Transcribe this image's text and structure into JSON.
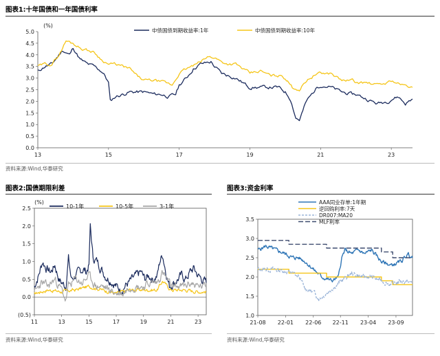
{
  "figure1": {
    "title": "图表1:十年国债和一年国债利率",
    "source": "资料来源:Wind,华泰研究"
  },
  "figure2": {
    "title": "图表2:国债期限利差",
    "source": "资料来源:Wind,华泰研究"
  },
  "figure3": {
    "title": "图表3:资金利率",
    "source": "资料来源:Wind,华泰研究"
  },
  "colors": {
    "navy": "#1a2a5c",
    "gold": "#f5c518",
    "gray": "#a6a6a6",
    "blue": "#2e75b6",
    "lightblue": "#9ab4d8",
    "dashnavy": "#3c4a6e"
  },
  "chart_data": [
    {
      "id": "fig1",
      "type": "line",
      "ylabel": "(%)",
      "ylim": [
        0,
        5
      ],
      "yticks": [
        "0.0",
        "0.5",
        "1.0",
        "1.5",
        "2.0",
        "2.5",
        "3.0",
        "3.5",
        "4.0",
        "4.5",
        "5.0"
      ],
      "xlim": [
        2013,
        2023.6
      ],
      "xticks": [
        {
          "x": 2013,
          "label": "13"
        },
        {
          "x": 2015,
          "label": "15"
        },
        {
          "x": 2017,
          "label": "17"
        },
        {
          "x": 2019,
          "label": "19"
        },
        {
          "x": 2021,
          "label": "21"
        },
        {
          "x": 2023,
          "label": "23"
        }
      ],
      "legend_position": "top",
      "series": [
        {
          "name": "中债国债到期收益率:1年",
          "color": "#1a2a5c",
          "seed": 11,
          "noise": 0.06,
          "x": [
            2013.0,
            2013.2,
            2013.4,
            2013.5,
            2013.7,
            2013.9,
            2014.0,
            2014.2,
            2014.4,
            2014.6,
            2014.8,
            2014.9,
            2015.0,
            2015.05,
            2015.2,
            2015.4,
            2015.6,
            2015.8,
            2016.0,
            2016.3,
            2016.5,
            2016.7,
            2016.9,
            2017.0,
            2017.2,
            2017.4,
            2017.6,
            2017.9,
            2018.0,
            2018.2,
            2018.4,
            2018.6,
            2018.8,
            2019.0,
            2019.3,
            2019.6,
            2019.8,
            2020.0,
            2020.15,
            2020.3,
            2020.4,
            2020.6,
            2020.9,
            2021.0,
            2021.3,
            2021.6,
            2021.9,
            2022.0,
            2022.3,
            2022.6,
            2022.9,
            2023.0,
            2023.2,
            2023.4,
            2023.6
          ],
          "y": [
            3.3,
            3.5,
            3.6,
            3.8,
            4.2,
            4.0,
            4.3,
            3.8,
            3.6,
            3.5,
            3.3,
            3.1,
            2.8,
            2.0,
            2.2,
            2.3,
            2.4,
            2.4,
            2.4,
            2.3,
            2.3,
            2.2,
            2.3,
            2.7,
            3.0,
            3.4,
            3.6,
            3.7,
            3.5,
            3.2,
            3.1,
            3.0,
            2.8,
            2.6,
            2.6,
            2.6,
            2.6,
            2.4,
            2.1,
            1.3,
            1.2,
            2.0,
            2.6,
            2.7,
            2.6,
            2.4,
            2.3,
            2.3,
            2.1,
            1.9,
            2.0,
            2.1,
            2.2,
            1.9,
            2.1
          ]
        },
        {
          "name": "中债国债到期收益率:10年",
          "color": "#f5c518",
          "seed": 29,
          "noise": 0.05,
          "x": [
            2013.0,
            2013.2,
            2013.4,
            2013.6,
            2013.8,
            2014.0,
            2014.2,
            2014.4,
            2014.6,
            2014.8,
            2015.0,
            2015.2,
            2015.4,
            2015.6,
            2015.8,
            2016.0,
            2016.3,
            2016.6,
            2016.8,
            2017.0,
            2017.2,
            2017.5,
            2017.8,
            2018.0,
            2018.2,
            2018.4,
            2018.6,
            2018.8,
            2019.0,
            2019.3,
            2019.6,
            2019.9,
            2020.0,
            2020.2,
            2020.4,
            2020.6,
            2020.9,
            2021.0,
            2021.3,
            2021.6,
            2021.9,
            2022.0,
            2022.3,
            2022.6,
            2022.9,
            2023.0,
            2023.3,
            2023.6
          ],
          "y": [
            3.5,
            3.6,
            3.6,
            4.0,
            4.6,
            4.5,
            4.3,
            4.2,
            4.1,
            3.8,
            3.6,
            3.6,
            3.5,
            3.4,
            3.1,
            2.9,
            2.9,
            2.8,
            2.7,
            3.2,
            3.4,
            3.6,
            3.9,
            3.9,
            3.7,
            3.6,
            3.6,
            3.4,
            3.2,
            3.3,
            3.1,
            3.1,
            3.0,
            2.6,
            2.5,
            2.9,
            3.2,
            3.2,
            3.2,
            2.9,
            2.9,
            2.8,
            2.8,
            2.7,
            2.8,
            2.9,
            2.7,
            2.6
          ]
        }
      ]
    },
    {
      "id": "fig2",
      "type": "line",
      "ylabel": "(%)",
      "ylim": [
        -0.5,
        2.5
      ],
      "yticks": [
        "(0.5)",
        "0.0",
        "0.5",
        "1.0",
        "1.5",
        "2.0",
        "2.5"
      ],
      "xlim": [
        2011,
        2023.6
      ],
      "xticks": [
        {
          "x": 2011,
          "label": "11"
        },
        {
          "x": 2013,
          "label": "13"
        },
        {
          "x": 2015,
          "label": "15"
        },
        {
          "x": 2017,
          "label": "17"
        },
        {
          "x": 2019,
          "label": "19"
        },
        {
          "x": 2021,
          "label": "21"
        },
        {
          "x": 2023,
          "label": "23"
        }
      ],
      "legend_position": "top",
      "series": [
        {
          "name": "10-1年",
          "color": "#1a2a5c",
          "seed": 7,
          "noise": 0.1,
          "x": [
            2011.0,
            2011.3,
            2011.6,
            2011.9,
            2012.2,
            2012.5,
            2012.8,
            2013.0,
            2013.3,
            2013.5,
            2013.7,
            2014.0,
            2014.3,
            2014.6,
            2014.8,
            2015.0,
            2015.1,
            2015.3,
            2015.6,
            2015.9,
            2016.2,
            2016.5,
            2016.8,
            2017.0,
            2017.3,
            2017.6,
            2017.9,
            2018.2,
            2018.5,
            2018.8,
            2019.1,
            2019.4,
            2019.7,
            2020.0,
            2020.2,
            2020.4,
            2020.6,
            2020.9,
            2021.2,
            2021.5,
            2021.8,
            2022.1,
            2022.4,
            2022.7,
            2023.0,
            2023.3,
            2023.6
          ],
          "y": [
            0.3,
            0.6,
            1.0,
            0.8,
            0.7,
            0.9,
            0.5,
            0.4,
            0.3,
            1.1,
            0.5,
            0.6,
            0.7,
            0.8,
            0.7,
            0.9,
            2.0,
            1.1,
            1.0,
            0.8,
            0.6,
            0.5,
            0.4,
            0.3,
            0.2,
            0.3,
            0.4,
            0.5,
            0.6,
            0.7,
            0.5,
            0.6,
            0.5,
            0.6,
            1.0,
            1.2,
            0.8,
            0.3,
            0.4,
            0.5,
            0.6,
            0.5,
            0.7,
            0.8,
            0.6,
            0.5,
            0.4
          ]
        },
        {
          "name": "10-5年",
          "color": "#f5c518",
          "seed": 17,
          "noise": 0.04,
          "x": [
            2011.0,
            2012.0,
            2013.0,
            2014.0,
            2015.0,
            2016.0,
            2017.0,
            2018.0,
            2019.0,
            2020.0,
            2020.4,
            2021.0,
            2022.0,
            2023.0,
            2023.6
          ],
          "y": [
            0.1,
            0.2,
            0.15,
            0.2,
            0.3,
            0.2,
            0.1,
            0.2,
            0.2,
            0.2,
            0.45,
            0.2,
            0.2,
            0.15,
            0.15
          ]
        },
        {
          "name": "3-1年",
          "color": "#a6a6a6",
          "seed": 23,
          "noise": 0.09,
          "x": [
            2011.0,
            2011.5,
            2012.0,
            2012.5,
            2013.0,
            2013.3,
            2013.5,
            2014.0,
            2014.5,
            2015.0,
            2015.5,
            2016.0,
            2016.5,
            2017.0,
            2017.5,
            2018.0,
            2018.5,
            2019.0,
            2019.5,
            2020.0,
            2020.4,
            2021.0,
            2021.5,
            2022.0,
            2022.5,
            2023.0,
            2023.6
          ],
          "y": [
            0.1,
            0.4,
            0.3,
            0.5,
            0.2,
            -0.1,
            0.3,
            0.5,
            0.4,
            0.6,
            0.3,
            0.3,
            0.2,
            0.1,
            0.1,
            0.3,
            0.3,
            0.3,
            0.4,
            0.4,
            0.7,
            0.3,
            0.3,
            0.3,
            0.4,
            0.3,
            0.3
          ]
        }
      ]
    },
    {
      "id": "fig3",
      "type": "line",
      "ylim": [
        1.0,
        3.5
      ],
      "yticks": [
        "1.0",
        "1.5",
        "2.0",
        "2.5",
        "3.0",
        "3.5"
      ],
      "xlim": [
        2021.58,
        2023.92
      ],
      "xticks": [
        {
          "x": 2021.58,
          "label": "21-08"
        },
        {
          "x": 2022.0,
          "label": "22-01"
        },
        {
          "x": 2022.42,
          "label": "22-06"
        },
        {
          "x": 2022.83,
          "label": "22-11"
        },
        {
          "x": 2023.25,
          "label": "23-04"
        },
        {
          "x": 2023.67,
          "label": "23-09"
        }
      ],
      "legend_position": "top",
      "series": [
        {
          "name": "AAA同业存单:1年期",
          "color": "#2e75b6",
          "dash": "",
          "seed": 5,
          "noise": 0.04,
          "x": [
            2021.58,
            2021.7,
            2021.85,
            2022.0,
            2022.1,
            2022.2,
            2022.3,
            2022.42,
            2022.55,
            2022.7,
            2022.8,
            2022.85,
            2022.9,
            2023.0,
            2023.1,
            2023.2,
            2023.3,
            2023.45,
            2023.6,
            2023.75,
            2023.85,
            2023.92
          ],
          "y": [
            2.7,
            2.8,
            2.7,
            2.6,
            2.5,
            2.5,
            2.4,
            2.2,
            2.0,
            1.9,
            2.0,
            2.5,
            2.7,
            2.6,
            2.7,
            2.6,
            2.7,
            2.4,
            2.3,
            2.4,
            2.6,
            2.5
          ]
        },
        {
          "name": "逆回购利率:7天",
          "color": "#f5c518",
          "dash": "",
          "seed": 0,
          "noise": 0,
          "x": [
            2021.58,
            2022.05,
            2022.05,
            2022.62,
            2022.62,
            2023.45,
            2023.45,
            2023.62,
            2023.62,
            2023.92
          ],
          "y": [
            2.2,
            2.2,
            2.1,
            2.1,
            2.0,
            2.0,
            1.9,
            1.9,
            1.8,
            1.8
          ]
        },
        {
          "name": "DR007:MA20",
          "color": "#9ab4d8",
          "dash": "3,2",
          "seed": 13,
          "noise": 0.05,
          "x": [
            2021.58,
            2021.8,
            2022.0,
            2022.1,
            2022.2,
            2022.3,
            2022.42,
            2022.5,
            2022.6,
            2022.7,
            2022.85,
            2023.0,
            2023.15,
            2023.3,
            2023.45,
            2023.6,
            2023.75,
            2023.92
          ],
          "y": [
            2.2,
            2.2,
            2.15,
            2.1,
            2.0,
            1.7,
            1.6,
            1.45,
            1.55,
            1.7,
            1.9,
            2.1,
            2.0,
            2.0,
            1.9,
            1.8,
            1.9,
            1.85
          ]
        },
        {
          "name": "MLF利率",
          "color": "#3c4a6e",
          "dash": "7,3",
          "seed": 0,
          "noise": 0,
          "x": [
            2021.58,
            2022.05,
            2022.05,
            2022.62,
            2022.62,
            2023.45,
            2023.45,
            2023.62,
            2023.62,
            2023.92
          ],
          "y": [
            2.95,
            2.95,
            2.85,
            2.85,
            2.75,
            2.75,
            2.65,
            2.65,
            2.5,
            2.5
          ]
        }
      ]
    }
  ]
}
